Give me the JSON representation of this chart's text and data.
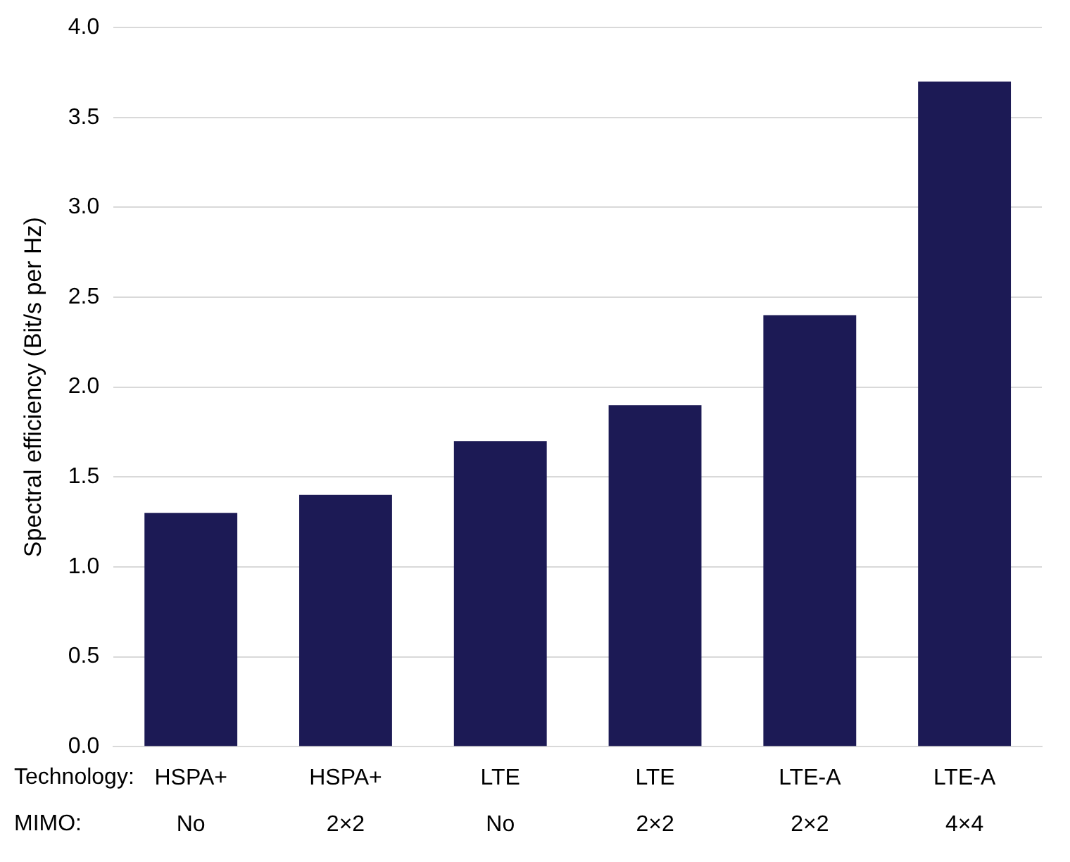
{
  "chart_data": {
    "type": "bar",
    "ylabel": "Spectral efficiency (Bit/s per Hz)",
    "categories": [
      "HSPA+\nNo",
      "HSPA+\n2×2",
      "LTE\nNo",
      "LTE\n2×2",
      "LTE-A\n2×2",
      "LTE-A\n4×4"
    ],
    "values": [
      1.3,
      1.4,
      1.7,
      1.9,
      2.4,
      3.7
    ],
    "color": "#1c1a55",
    "ylim": [
      0,
      4
    ],
    "yticks": [
      {
        "value": 0,
        "label": "0.0"
      },
      0.5,
      {
        "value": 1,
        "label": "1.0"
      },
      1.5,
      {
        "value": 2,
        "label": "2.0"
      },
      2.5,
      {
        "value": 3,
        "label": "3.0"
      },
      3.5,
      {
        "value": 4,
        "label": "4.0"
      }
    ],
    "grid": "y",
    "legend": false,
    "annotations": [
      "Technology:",
      "MIMO:"
    ]
  }
}
